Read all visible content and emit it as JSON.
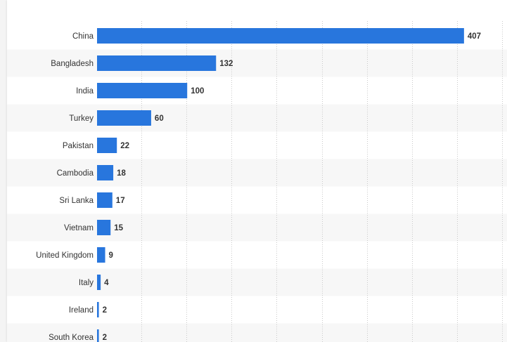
{
  "chart_data": {
    "type": "bar",
    "orientation": "horizontal",
    "title": "",
    "xlabel": "",
    "ylabel": "",
    "categories": [
      "China",
      "Bangladesh",
      "India",
      "Turkey",
      "Pakistan",
      "Cambodia",
      "Sri Lanka",
      "Vietnam",
      "United Kingdom",
      "Italy",
      "Ireland",
      "South Korea"
    ],
    "values": [
      407,
      132,
      100,
      60,
      22,
      18,
      17,
      15,
      9,
      4,
      2,
      2
    ],
    "xlim": [
      0,
      450
    ],
    "grid": true,
    "legend": "none",
    "colors": {
      "bar": "#2876dd",
      "band": "#f7f7f7",
      "grid": "#c9c9c9",
      "text": "#333333"
    }
  }
}
